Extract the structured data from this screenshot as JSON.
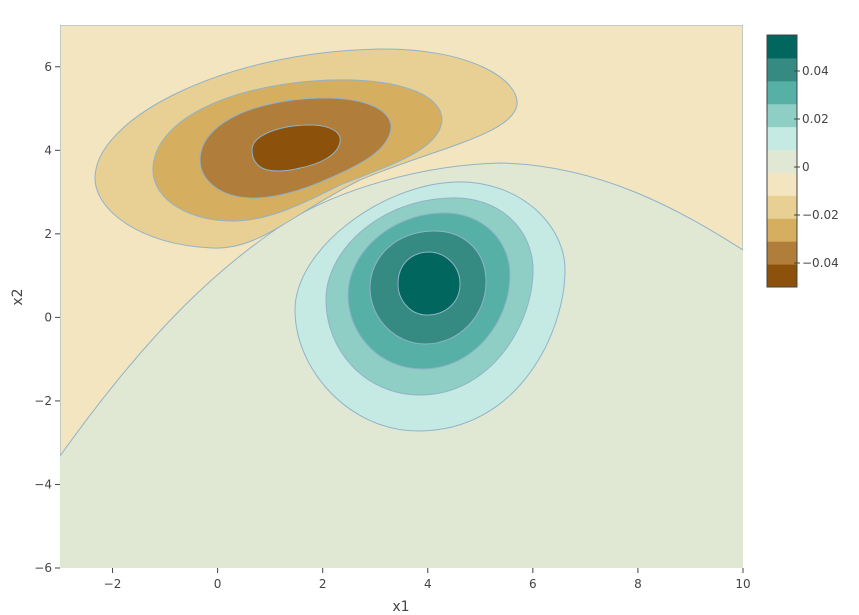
{
  "chart_data": {
    "type": "contour",
    "title": "",
    "xlabel": "x1",
    "ylabel": "x2",
    "xlim": [
      -3,
      10
    ],
    "ylim": [
      -6,
      7
    ],
    "x_ticks": [
      "−2",
      "0",
      "2",
      "4",
      "6",
      "8",
      "10"
    ],
    "x_tick_values": [
      -2,
      0,
      2,
      4,
      6,
      8,
      10
    ],
    "y_ticks": [
      "−6",
      "−4",
      "−2",
      "0",
      "2",
      "4",
      "6"
    ],
    "y_tick_values": [
      -6,
      -4,
      -2,
      0,
      2,
      4,
      6
    ],
    "colorscale": "BrBG",
    "colorbar": {
      "range": [
        -0.05,
        0.055
      ],
      "tick_labels": [
        "−0.04",
        "−0.02",
        "0",
        "0.02",
        "0.04"
      ],
      "tick_values": [
        -0.04,
        -0.02,
        0,
        0.02,
        0.04
      ],
      "band_colors": [
        "#8c510a",
        "#b07d3b",
        "#d5ae60",
        "#e8cf94",
        "#f3e5c0",
        "#e0e8d4",
        "#c5e9e3",
        "#8fcec5",
        "#57b0a6",
        "#358a82",
        "#01665e"
      ]
    },
    "contour_step": 0.01,
    "surface": {
      "negative_peak": {
        "x": 1.7,
        "y": 4.0,
        "value": -0.05
      },
      "positive_peak": {
        "x": 4.0,
        "y": 0.8,
        "value": 0.055
      }
    }
  }
}
